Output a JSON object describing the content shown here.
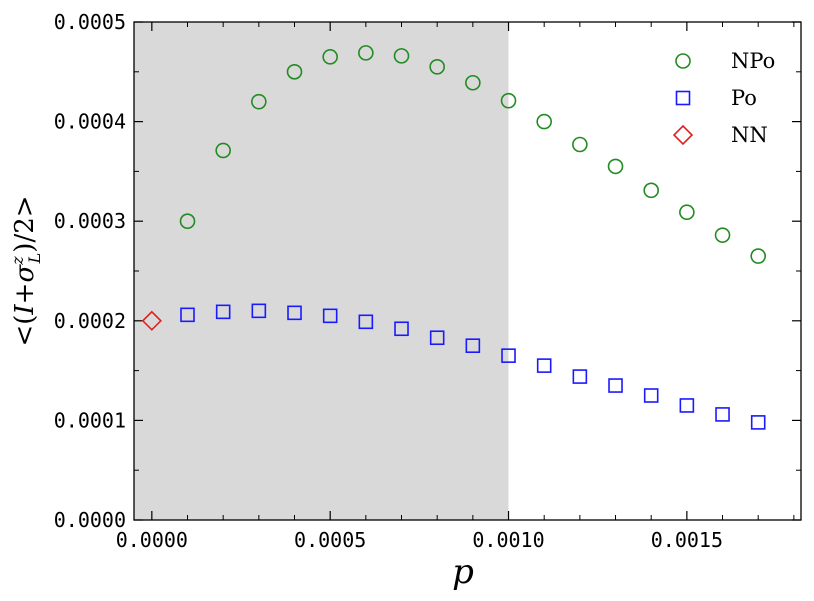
{
  "chart_data": {
    "type": "scatter",
    "xlabel": "p",
    "ylabel": "<(I+σ_L^z)/2>",
    "xlim": [
      -5e-05,
      0.00182
    ],
    "ylim": [
      0,
      0.0005
    ],
    "xticks": [
      0.0,
      0.0005,
      0.001,
      0.0015
    ],
    "xtick_labels": [
      "0.0000",
      "0.0005",
      "0.0010",
      "0.0015"
    ],
    "yticks": [
      0.0,
      0.0001,
      0.0002,
      0.0003,
      0.0004,
      0.0005
    ],
    "ytick_labels": [
      "0.0000",
      "0.0001",
      "0.0002",
      "0.0003",
      "0.0004",
      "0.0005"
    ],
    "shaded_region": {
      "x_from": -5e-05,
      "x_to": 0.001,
      "color": "#d9d9d9"
    },
    "legend_position": "top-right",
    "series": [
      {
        "name": "NPo",
        "marker": "circle",
        "color": "#228b22",
        "x": [
          0.0001,
          0.0002,
          0.0003,
          0.0004,
          0.0005,
          0.0006,
          0.0007,
          0.0008,
          0.0009,
          0.001,
          0.0011,
          0.0012,
          0.0013,
          0.0014,
          0.0015,
          0.0016,
          0.0017
        ],
        "y": [
          0.0003,
          0.000371,
          0.00042,
          0.00045,
          0.000465,
          0.000469,
          0.000466,
          0.000455,
          0.000439,
          0.000421,
          0.0004,
          0.000377,
          0.000355,
          0.000331,
          0.000309,
          0.000286,
          0.000265
        ]
      },
      {
        "name": "Po",
        "marker": "square",
        "color": "#1a1aff",
        "x": [
          0.0001,
          0.0002,
          0.0003,
          0.0004,
          0.0005,
          0.0006,
          0.0007,
          0.0008,
          0.0009,
          0.001,
          0.0011,
          0.0012,
          0.0013,
          0.0014,
          0.0015,
          0.0016,
          0.0017
        ],
        "y": [
          0.000206,
          0.000209,
          0.00021,
          0.000208,
          0.000205,
          0.000199,
          0.000192,
          0.000183,
          0.000175,
          0.000165,
          0.000155,
          0.000144,
          0.000135,
          0.000125,
          0.000115,
          0.000106,
          9.8e-05
        ]
      },
      {
        "name": "NN",
        "marker": "diamond",
        "color": "#e02020",
        "x": [
          0.0
        ],
        "y": [
          0.0002
        ]
      }
    ]
  }
}
